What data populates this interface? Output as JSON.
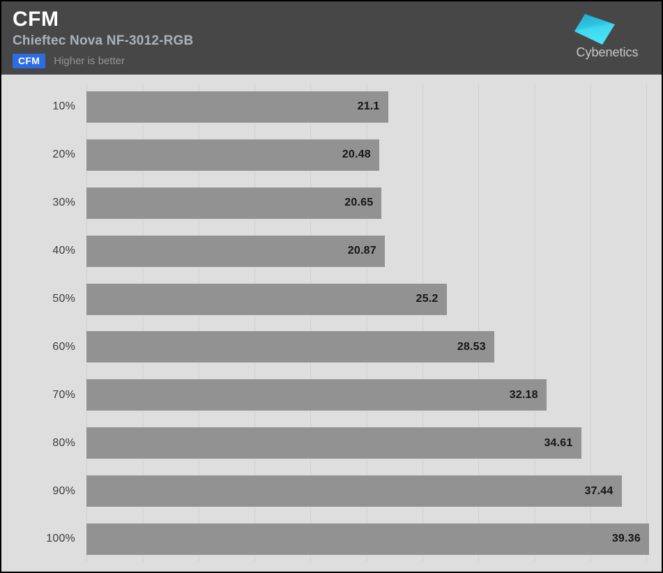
{
  "header": {
    "title": "CFM",
    "subtitle": "Chieftec Nova NF-3012-RGB",
    "badge_label": "CFM",
    "badge_note": "Higher is better",
    "brand": "Cybenetics"
  },
  "colors": {
    "header_bg": "#474747",
    "chart_bg": "#dedede",
    "gridline": "#d0d0d0",
    "bar": "#929292",
    "badge_bg": "#2d6ce3",
    "subtitle_text": "#a9b2bb",
    "brand_cyan_dark": "#25aed2",
    "brand_cyan_light": "#47e2f6"
  },
  "chart_data": {
    "type": "bar",
    "orientation": "horizontal",
    "title": "CFM",
    "subtitle": "Chieftec Nova NF-3012-RGB",
    "xlabel": "",
    "ylabel": "",
    "categories": [
      "10%",
      "20%",
      "30%",
      "40%",
      "50%",
      "60%",
      "70%",
      "80%",
      "90%",
      "100%"
    ],
    "values": [
      21.1,
      20.48,
      20.65,
      20.87,
      25.2,
      28.53,
      32.18,
      34.61,
      37.44,
      39.36
    ],
    "xlim": [
      0,
      40
    ],
    "grid": true,
    "gridline_step": 3.92,
    "legend": "none",
    "value_labels": true
  }
}
